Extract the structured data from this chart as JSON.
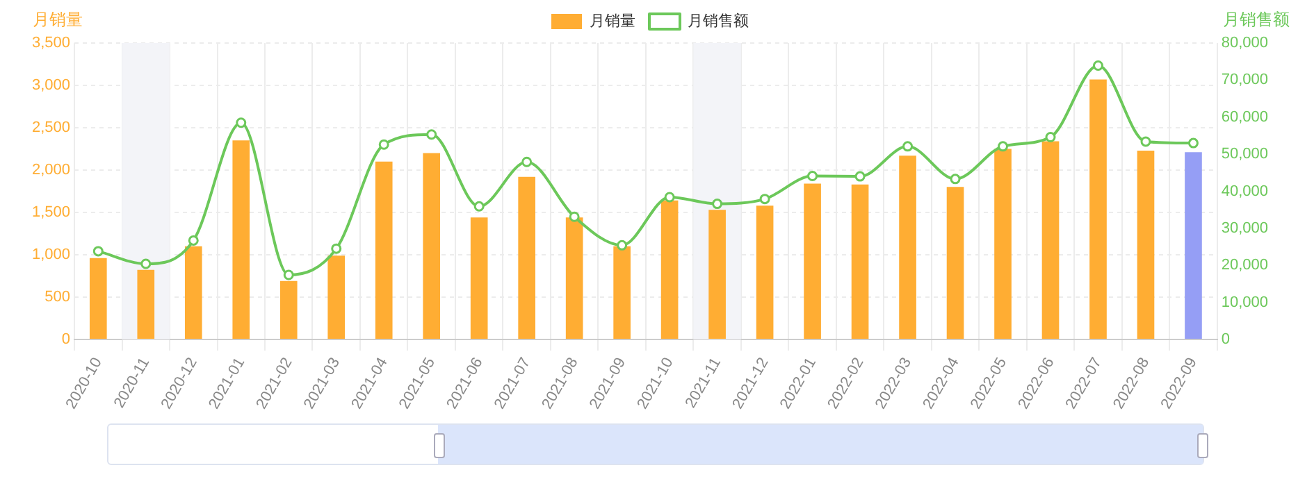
{
  "chart_data": {
    "type": "bar",
    "ylabel": "月销量",
    "y2label": "月销售额",
    "categories": [
      "2020-10",
      "2020-11",
      "2020-12",
      "2021-01",
      "2021-02",
      "2021-03",
      "2021-04",
      "2021-05",
      "2021-06",
      "2021-07",
      "2021-08",
      "2021-09",
      "2021-10",
      "2021-11",
      "2021-12",
      "2022-01",
      "2022-02",
      "2022-03",
      "2022-04",
      "2022-05",
      "2022-06",
      "2022-07",
      "2022-08",
      "2022-09"
    ],
    "series": [
      {
        "name": "月销量",
        "color": "#ffad33",
        "colors": [
          "#ffad33",
          "#ffad33",
          "#ffad33",
          "#ffad33",
          "#ffad33",
          "#ffad33",
          "#ffad33",
          "#ffad33",
          "#ffad33",
          "#ffad33",
          "#ffad33",
          "#ffad33",
          "#ffad33",
          "#ffad33",
          "#ffad33",
          "#ffad33",
          "#ffad33",
          "#ffad33",
          "#ffad33",
          "#ffad33",
          "#ffad33",
          "#ffad33",
          "#ffad33",
          "#959ef5"
        ],
        "values": [
          960,
          820,
          1100,
          2350,
          690,
          990,
          2100,
          2200,
          1440,
          1920,
          1440,
          1100,
          1640,
          1530,
          1580,
          1840,
          1830,
          2170,
          1800,
          2250,
          2340,
          3070,
          2230,
          2210
        ]
      },
      {
        "name": "月销售额",
        "type": "line",
        "axis": "y2",
        "color": "#6cc85a",
        "values": [
          23800,
          20400,
          26700,
          58500,
          17400,
          24500,
          52600,
          55300,
          35900,
          47900,
          33100,
          25400,
          38400,
          36600,
          37900,
          44100,
          44000,
          52100,
          43300,
          52100,
          54600,
          73900,
          53400,
          53000
        ]
      }
    ],
    "ylim": [
      0,
      3500
    ],
    "yticks": [
      0,
      500,
      {
        "value": 1000,
        "label": "1,000"
      },
      {
        "value": 1500,
        "label": "1,500"
      },
      {
        "value": 2000,
        "label": "2,000"
      },
      {
        "value": 2500,
        "label": "2,500"
      },
      {
        "value": 3000,
        "label": "3,000"
      },
      {
        "value": 3500,
        "label": "3,500"
      }
    ],
    "y2lim": [
      0,
      80000
    ],
    "y2ticks": [
      0,
      {
        "value": 10000,
        "label": "10,000"
      },
      {
        "value": 20000,
        "label": "20,000"
      },
      {
        "value": 30000,
        "label": "30,000"
      },
      {
        "value": 40000,
        "label": "40,000"
      },
      {
        "value": 50000,
        "label": "50,000"
      },
      {
        "value": 60000,
        "label": "60,000"
      },
      {
        "value": 70000,
        "label": "70,000"
      },
      {
        "value": 80000,
        "label": "80,000"
      }
    ],
    "bands": [
      {
        "axis": "x",
        "from": "2020-11",
        "to": "2020-11",
        "color": "#f3f4f8"
      },
      {
        "axis": "x",
        "from": "2021-11",
        "to": "2021-11",
        "color": "#f3f4f8"
      }
    ],
    "grid": true,
    "legend": "top",
    "marker": "circle"
  }
}
